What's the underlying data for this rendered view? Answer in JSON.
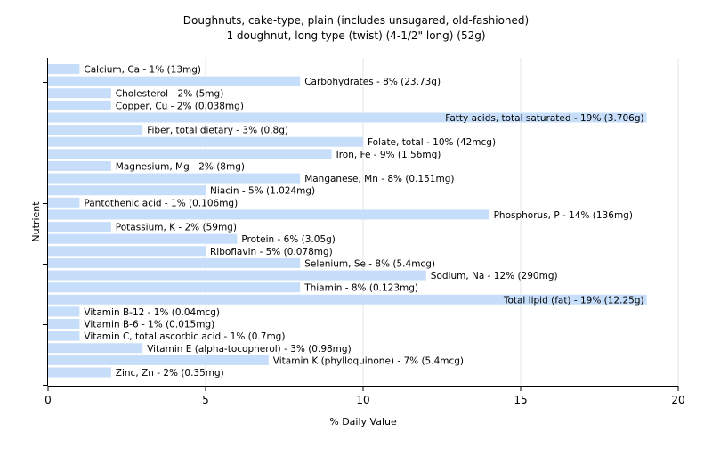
{
  "chart_data": {
    "type": "bar",
    "orientation": "horizontal",
    "title": "Doughnuts, cake-type, plain (includes unsugared, old-fashioned)",
    "subtitle": "1 doughnut, long type (twist) (4-1/2\" long) (52g)",
    "xlabel": "% Daily Value",
    "ylabel": "Nutrient",
    "xlim": [
      0,
      20
    ],
    "xticks": [
      0,
      5,
      10,
      15,
      20
    ],
    "grid": true,
    "bar_color": "#c6defa",
    "categories": [
      "Calcium, Ca",
      "Carbohydrates",
      "Cholesterol",
      "Copper, Cu",
      "Fatty acids, total saturated",
      "Fiber, total dietary",
      "Folate, total",
      "Iron, Fe",
      "Magnesium, Mg",
      "Manganese, Mn",
      "Niacin",
      "Pantothenic acid",
      "Phosphorus, P",
      "Potassium, K",
      "Protein",
      "Riboflavin",
      "Selenium, Se",
      "Sodium, Na",
      "Thiamin",
      "Total lipid (fat)",
      "Vitamin B-12",
      "Vitamin B-6",
      "Vitamin C, total ascorbic acid",
      "Vitamin E (alpha-tocopherol)",
      "Vitamin K (phylloquinone)",
      "Zinc, Zn"
    ],
    "values": [
      1,
      8,
      2,
      2,
      19,
      3,
      10,
      9,
      2,
      8,
      5,
      1,
      14,
      2,
      6,
      5,
      8,
      12,
      8,
      19,
      1,
      1,
      1,
      3,
      7,
      2
    ],
    "labels": [
      "Calcium, Ca - 1% (13mg)",
      "Carbohydrates - 8% (23.73g)",
      "Cholesterol - 2% (5mg)",
      "Copper, Cu - 2% (0.038mg)",
      "Fatty acids, total saturated - 19% (3.706g)",
      "Fiber, total dietary - 3% (0.8g)",
      "Folate, total - 10% (42mcg)",
      "Iron, Fe - 9% (1.56mg)",
      "Magnesium, Mg - 2% (8mg)",
      "Manganese, Mn - 8% (0.151mg)",
      "Niacin - 5% (1.024mg)",
      "Pantothenic acid - 1% (0.106mg)",
      "Phosphorus, P - 14% (136mg)",
      "Potassium, K - 2% (59mg)",
      "Protein - 6% (3.05g)",
      "Riboflavin - 5% (0.078mg)",
      "Selenium, Se - 8% (5.4mcg)",
      "Sodium, Na - 12% (290mg)",
      "Thiamin - 8% (0.123mg)",
      "Total lipid (fat) - 19% (12.25g)",
      "Vitamin B-12 - 1% (0.04mcg)",
      "Vitamin B-6 - 1% (0.015mg)",
      "Vitamin C, total ascorbic acid - 1% (0.7mg)",
      "Vitamin E (alpha-tocopherol) - 3% (0.98mg)",
      "Vitamin K (phylloquinone) - 7% (5.4mcg)",
      "Zinc, Zn - 2% (0.35mg)"
    ]
  }
}
